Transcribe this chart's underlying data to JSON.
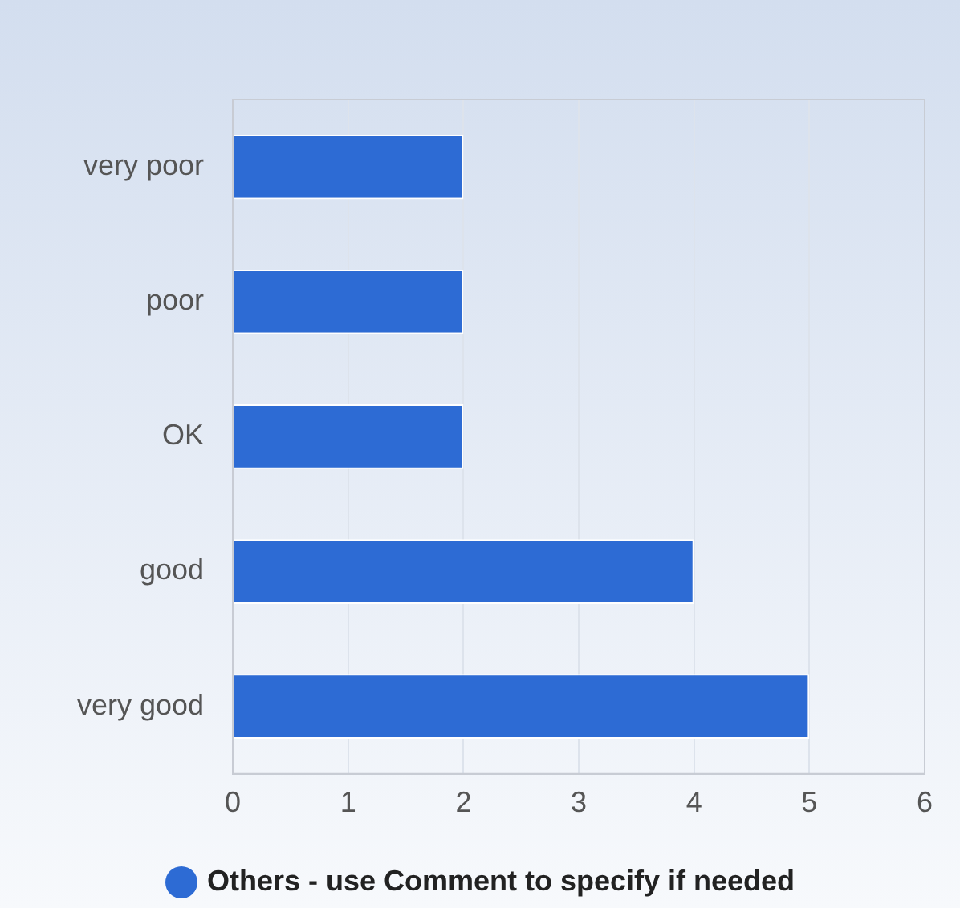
{
  "chart_data": {
    "type": "bar",
    "orientation": "horizontal",
    "categories": [
      "very poor",
      "poor",
      "OK",
      "good",
      "very good"
    ],
    "series": [
      {
        "name": "Others - use Comment to specify if needed",
        "color": "#2d6bd4",
        "values": [
          2,
          2,
          2,
          4,
          5
        ]
      }
    ],
    "xlim": [
      0,
      6
    ],
    "xticks": [
      0,
      1,
      2,
      3,
      4,
      5,
      6
    ],
    "grid": "x",
    "legend": "bottom"
  }
}
